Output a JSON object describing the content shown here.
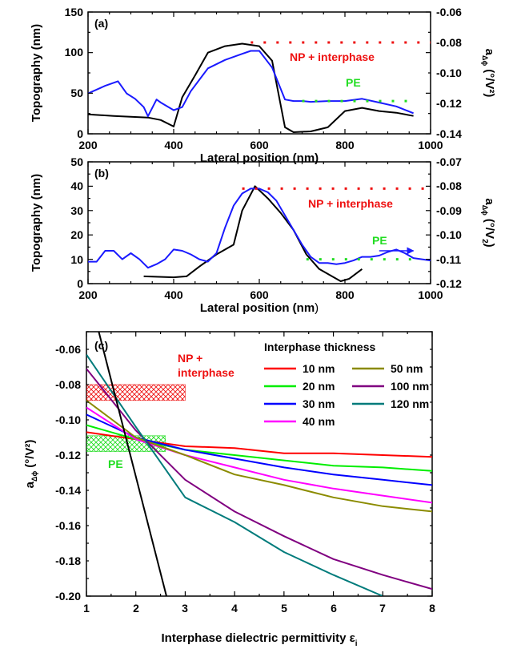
{
  "chart_data": [
    {
      "panel": "(a)",
      "type": "line",
      "xlabel": "Lateral position (nm)",
      "ylabel": "Topography (nm)",
      "y2label_main": "a",
      "y2label_sub": "Δϕ",
      "y2label_unit": "(°/V²)",
      "xlim": [
        200,
        1000
      ],
      "ylim": [
        0,
        150
      ],
      "y2lim": [
        -0.14,
        -0.06
      ],
      "xticks": [
        "200",
        "400",
        "600",
        "800",
        "1000"
      ],
      "yticks": [
        "0",
        "50",
        "100",
        "150"
      ],
      "y2ticks": [
        "-0.14",
        "-0.12",
        "-0.10",
        "-0.08",
        "-0.06"
      ],
      "annotations": [
        {
          "text": "NP + interphase",
          "color": "#ee1111"
        },
        {
          "text": "PE",
          "color": "#22dd22"
        }
      ],
      "series": [
        {
          "color": "#000000",
          "axis": "left",
          "x": [
            200,
            260,
            300,
            340,
            370,
            400,
            420,
            450,
            480,
            520,
            560,
            600,
            630,
            660,
            680,
            720,
            760,
            800,
            840,
            880,
            920,
            960
          ],
          "y": [
            24,
            22,
            21,
            20,
            17,
            9,
            45,
            72,
            100,
            108,
            111,
            108,
            90,
            8,
            2,
            3,
            8,
            28,
            32,
            28,
            26,
            22
          ]
        },
        {
          "color": "#1a1aff",
          "axis": "right",
          "x": [
            200,
            240,
            270,
            290,
            310,
            330,
            340,
            360,
            370,
            400,
            420,
            440,
            480,
            520,
            560,
            580,
            600,
            630,
            660,
            680,
            700,
            720,
            760,
            800,
            840,
            880,
            920,
            960
          ],
          "y": [
            -0.1135,
            -0.1085,
            -0.1055,
            -0.1135,
            -0.117,
            -0.1225,
            -0.1285,
            -0.1175,
            -0.1195,
            -0.1245,
            -0.1225,
            -0.112,
            -0.097,
            -0.0915,
            -0.0875,
            -0.0855,
            -0.0855,
            -0.0965,
            -0.1175,
            -0.1185,
            -0.1185,
            -0.119,
            -0.1185,
            -0.1185,
            -0.117,
            -0.1195,
            -0.122,
            -0.1265
          ]
        },
        {
          "color": "#ee1111",
          "axis": "right",
          "dotted": true,
          "x": [
            580,
            1000
          ],
          "y": [
            -0.08,
            -0.08
          ]
        },
        {
          "color": "#22dd22",
          "axis": "right",
          "dotted": true,
          "x": [
            700,
            960
          ],
          "y": [
            -0.1185,
            -0.1185
          ]
        }
      ]
    },
    {
      "panel": "(b)",
      "type": "line",
      "xlabel": "Lateral position (nm",
      "xlabel_tail": ")",
      "ylabel": "Topography (nm)",
      "y2label_main": "a",
      "y2label_sub": "Δϕ",
      "y2label_unit": "(°/V",
      "y2label_unit_sub": "2",
      "y2label_close": ")",
      "xlim": [
        200,
        1000
      ],
      "ylim": [
        0,
        50
      ],
      "y2lim": [
        -0.12,
        -0.07
      ],
      "xticks": [
        "200",
        "400",
        "600",
        "800",
        "1000"
      ],
      "yticks": [
        "0",
        "10",
        "20",
        "30",
        "40",
        "50"
      ],
      "y2ticks": [
        "-0.12",
        "-0.11",
        "-0.10",
        "-0.09",
        "-0.08",
        "-0.07"
      ],
      "annotations": [
        {
          "text": "NP + interphase",
          "color": "#ee1111"
        },
        {
          "text": "PE",
          "color": "#22dd22"
        }
      ],
      "series": [
        {
          "color": "#000000",
          "axis": "left",
          "x": [
            330,
            400,
            430,
            460,
            500,
            540,
            560,
            590,
            620,
            650,
            680,
            710,
            740,
            770,
            790,
            810,
            840
          ],
          "y": [
            3,
            2.6,
            3,
            7,
            12,
            16,
            30,
            40,
            35,
            29,
            22,
            12,
            6,
            3,
            1,
            2,
            6
          ]
        },
        {
          "color": "#1a1aff",
          "axis": "right",
          "x": [
            200,
            220,
            240,
            260,
            280,
            300,
            320,
            340,
            360,
            380,
            400,
            420,
            440,
            460,
            480,
            500,
            520,
            540,
            560,
            580,
            600,
            620,
            640,
            660,
            680,
            700,
            720,
            740,
            760,
            780,
            800,
            820,
            840,
            860,
            880,
            900,
            920,
            940,
            960,
            980,
            1000
          ],
          "y": [
            -0.111,
            -0.111,
            -0.1065,
            -0.1065,
            -0.11,
            -0.1075,
            -0.11,
            -0.1135,
            -0.112,
            -0.11,
            -0.106,
            -0.1065,
            -0.108,
            -0.11,
            -0.111,
            -0.1075,
            -0.097,
            -0.088,
            -0.083,
            -0.081,
            -0.081,
            -0.0825,
            -0.086,
            -0.092,
            -0.098,
            -0.104,
            -0.109,
            -0.1115,
            -0.1115,
            -0.112,
            -0.1115,
            -0.1105,
            -0.109,
            -0.109,
            -0.1085,
            -0.107,
            -0.106,
            -0.1075,
            -0.1095,
            -0.11,
            -0.1105
          ]
        },
        {
          "color": "#ee1111",
          "axis": "right",
          "dotted": true,
          "x": [
            560,
            1000
          ],
          "y": [
            -0.081,
            -0.081
          ]
        },
        {
          "color": "#22dd22",
          "axis": "right",
          "dotted": true,
          "x": [
            710,
            970
          ],
          "y": [
            -0.11,
            -0.11
          ]
        }
      ],
      "arrow": {
        "color": "#1a1aff",
        "x": [
          880,
          960
        ],
        "y": [
          -0.1065,
          -0.1065
        ]
      }
    },
    {
      "panel": "(c)",
      "type": "line",
      "xlabel": "Interphase dielectric permittivity ε",
      "xlabel_sub": "i",
      "ylabel_main": "a",
      "ylabel_sub": "Δϕ",
      "ylabel_unit": "(°/V²)",
      "xlim": [
        1,
        8
      ],
      "ylim": [
        -0.2,
        -0.05
      ],
      "xticks": [
        "1",
        "2",
        "3",
        "4",
        "5",
        "6",
        "7",
        "8"
      ],
      "yticks": [
        "-0.20",
        "-0.18",
        "-0.16",
        "-0.14",
        "-0.12",
        "-0.10",
        "-0.08",
        "-0.06"
      ],
      "legend_title": "Interphase thickness",
      "legend_position": "top-right",
      "annotations": [
        {
          "text": "NP +",
          "color": "#ee1111"
        },
        {
          "text": "interphase",
          "color": "#ee1111"
        },
        {
          "text": "PE",
          "color": "#22dd22"
        }
      ],
      "bands": [
        {
          "color": "#ee1111",
          "x": [
            1,
            3
          ],
          "y": [
            -0.089,
            -0.08
          ]
        },
        {
          "color": "#22dd22",
          "x": [
            1,
            2.6
          ],
          "y": [
            -0.118,
            -0.109
          ]
        }
      ],
      "series": [
        {
          "name": "10 nm",
          "color": "#ff0000",
          "x": [
            1,
            2,
            3,
            4,
            5,
            6,
            7,
            8
          ],
          "y": [
            -0.107,
            -0.111,
            -0.115,
            -0.116,
            -0.119,
            -0.119,
            -0.12,
            -0.121
          ]
        },
        {
          "name": "20 nm",
          "color": "#00ee00",
          "x": [
            1,
            2,
            3,
            4,
            5,
            6,
            7,
            8
          ],
          "y": [
            -0.103,
            -0.111,
            -0.117,
            -0.12,
            -0.123,
            -0.126,
            -0.127,
            -0.129
          ]
        },
        {
          "name": "30 nm",
          "color": "#0000ff",
          "x": [
            1,
            2,
            3,
            4,
            5,
            6,
            7,
            8
          ],
          "y": [
            -0.097,
            -0.11,
            -0.117,
            -0.122,
            -0.127,
            -0.131,
            -0.134,
            -0.137
          ]
        },
        {
          "name": "40 nm",
          "color": "#ff00ff",
          "x": [
            1,
            2,
            3,
            4,
            5,
            6,
            7,
            8
          ],
          "y": [
            -0.093,
            -0.111,
            -0.12,
            -0.127,
            -0.134,
            -0.139,
            -0.143,
            -0.147
          ]
        },
        {
          "name": "50 nm",
          "color": "#8b8b00",
          "x": [
            1,
            2,
            3,
            4,
            5,
            6,
            7,
            8
          ],
          "y": [
            -0.089,
            -0.11,
            -0.12,
            -0.131,
            -0.137,
            -0.144,
            -0.149,
            -0.152
          ]
        },
        {
          "name": "100 nm",
          "color": "#800080",
          "x": [
            1,
            2,
            3,
            4,
            5,
            6,
            7,
            8
          ],
          "y": [
            -0.071,
            -0.106,
            -0.134,
            -0.152,
            -0.166,
            -0.179,
            -0.188,
            -0.196
          ]
        },
        {
          "name": "120 nm",
          "color": "#007b7b",
          "x": [
            1,
            2,
            3,
            4,
            5,
            6,
            7
          ],
          "y": [
            -0.063,
            -0.104,
            -0.144,
            -0.158,
            -0.175,
            -0.188,
            -0.2
          ]
        },
        {
          "color": "#000000",
          "x": [
            1.25,
            2.62
          ],
          "y": [
            -0.05,
            -0.2
          ]
        }
      ]
    }
  ]
}
